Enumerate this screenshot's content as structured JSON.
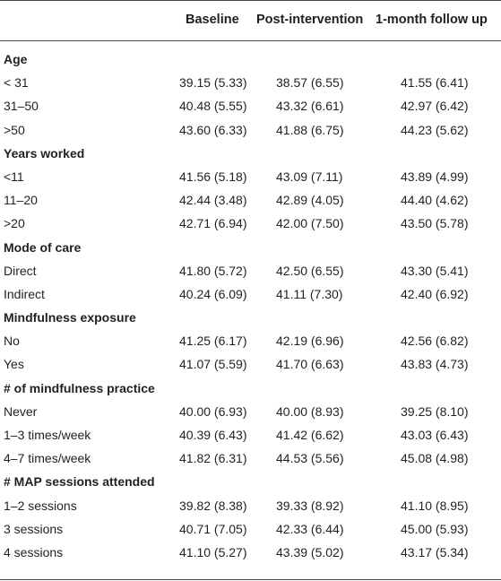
{
  "columns": [
    "Baseline",
    "Post-intervention",
    "1-month follow up"
  ],
  "groups": [
    {
      "title": "Age",
      "rows": [
        {
          "label": "< 31",
          "values": [
            "39.15 (5.33)",
            "38.57 (6.55)",
            "41.55 (6.41)"
          ]
        },
        {
          "label": "31–50",
          "values": [
            "40.48 (5.55)",
            "43.32 (6.61)",
            "42.97 (6.42)"
          ]
        },
        {
          "label": ">50",
          "values": [
            "43.60 (6.33)",
            "41.88 (6.75)",
            "44.23 (5.62)"
          ]
        }
      ]
    },
    {
      "title": "Years worked",
      "rows": [
        {
          "label": "<11",
          "values": [
            "41.56 (5.18)",
            "43.09 (7.11)",
            "43.89 (4.99)"
          ]
        },
        {
          "label": "11–20",
          "values": [
            "42.44 (3.48)",
            "42.89 (4.05)",
            "44.40 (4.62)"
          ]
        },
        {
          "label": ">20",
          "values": [
            "42.71 (6.94)",
            "42.00 (7.50)",
            "43.50 (5.78)"
          ]
        }
      ]
    },
    {
      "title": "Mode of care",
      "rows": [
        {
          "label": "Direct",
          "values": [
            "41.80 (5.72)",
            "42.50 (6.55)",
            "43.30 (5.41)"
          ]
        },
        {
          "label": "Indirect",
          "values": [
            "40.24 (6.09)",
            "41.11 (7.30)",
            "42.40 (6.92)"
          ]
        }
      ]
    },
    {
      "title": "Mindfulness exposure",
      "rows": [
        {
          "label": "No",
          "values": [
            "41.25 (6.17)",
            "42.19 (6.96)",
            "42.56 (6.82)"
          ]
        },
        {
          "label": "Yes",
          "values": [
            "41.07 (5.59)",
            "41.70 (6.63)",
            "43.83 (4.73)"
          ]
        }
      ]
    },
    {
      "title": "# of mindfulness practice",
      "rows": [
        {
          "label": "Never",
          "values": [
            "40.00 (6.93)",
            "40.00 (8.93)",
            "39.25 (8.10)"
          ]
        },
        {
          "label": "1–3 times/week",
          "values": [
            "40.39 (6.43)",
            "41.42 (6.62)",
            "43.03 (6.43)"
          ]
        },
        {
          "label": "4–7 times/week",
          "values": [
            "41.82 (6.31)",
            "44.53 (5.56)",
            "45.08 (4.98)"
          ]
        }
      ]
    },
    {
      "title": "# MAP sessions attended",
      "rows": [
        {
          "label": "1–2 sessions",
          "values": [
            "39.82 (8.38)",
            "39.33 (8.92)",
            "41.10 (8.95)"
          ]
        },
        {
          "label": "3 sessions",
          "values": [
            "40.71 (7.05)",
            "42.33 (6.44)",
            "45.00 (5.93)"
          ]
        },
        {
          "label": "4 sessions",
          "values": [
            "41.10 (5.27)",
            "43.39 (5.02)",
            "43.17 (5.34)"
          ]
        }
      ]
    }
  ]
}
